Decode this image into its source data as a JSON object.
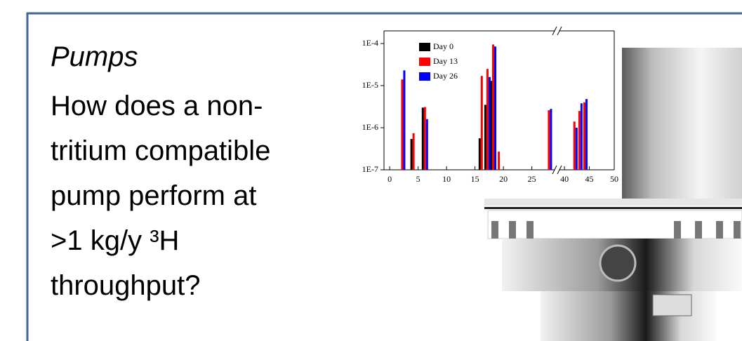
{
  "slide": {
    "title": "Pumps",
    "body_lines": [
      "How does a non-",
      "tritium compatible",
      "pump perform at",
      ">1 kg/y ³H",
      "throughput?"
    ]
  },
  "chart_data": {
    "type": "bar",
    "log_y": true,
    "x": [
      2.2,
      4.2,
      6.2,
      16.2,
      17.2,
      18.2,
      19.2,
      28,
      42,
      43,
      44
    ],
    "series": [
      {
        "name": "Day 0",
        "color": "#000000",
        "values": [
          null,
          5.4e-07,
          3e-06,
          5.6e-07,
          3.5e-06,
          1.3e-05,
          null,
          null,
          null,
          null,
          null
        ]
      },
      {
        "name": "Day 13",
        "color": "#ff0000",
        "values": [
          1.4e-05,
          7.4e-07,
          3.1e-06,
          1.7e-05,
          2.5e-05,
          9.5e-05,
          2.7e-07,
          2.6e-06,
          1.4e-06,
          2.5e-06,
          4e-06
        ]
      },
      {
        "name": "Day 26",
        "color": "#0000ff",
        "values": [
          2.3e-05,
          null,
          1.6e-06,
          null,
          1.6e-05,
          8.5e-05,
          null,
          2.8e-06,
          1e-06,
          3.8e-06,
          4.8e-06
        ]
      }
    ],
    "xlim": [
      -1,
      50
    ],
    "x_break": [
      29,
      39
    ],
    "xticks": [
      0,
      5,
      10,
      15,
      20,
      25,
      40,
      45,
      50
    ],
    "ylim": [
      1e-07,
      0.0002
    ],
    "yticks": [
      {
        "value": 1e-07,
        "label": "1E-7"
      },
      {
        "value": 1e-06,
        "label": "1E-6"
      },
      {
        "value": 1e-05,
        "label": "1E-5"
      },
      {
        "value": 0.0001,
        "label": "1E-4"
      }
    ],
    "legend": "top-left"
  }
}
